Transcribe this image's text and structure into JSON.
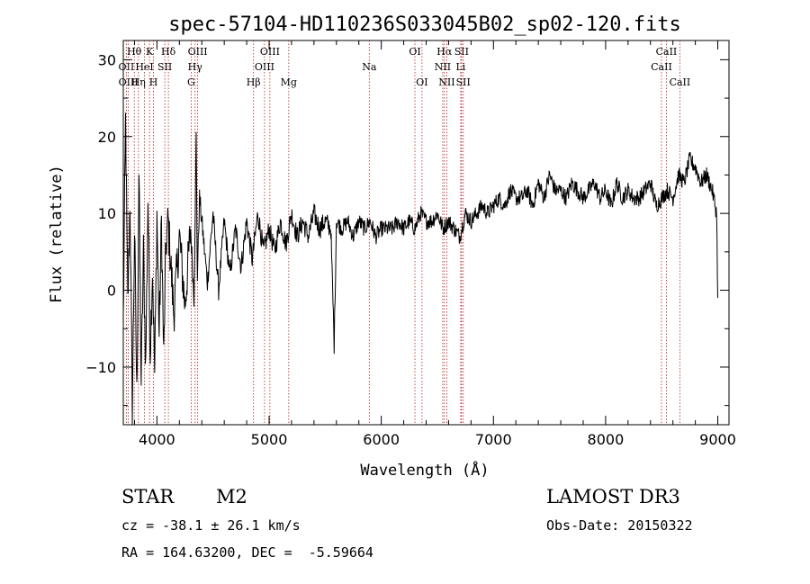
{
  "chart_data": {
    "type": "line",
    "title": "spec-57104-HD110236S033045B02_sp02-120.fits",
    "xlabel": "Wavelength (Å)",
    "ylabel": "Flux (relative)",
    "xlim": [
      3700,
      9100
    ],
    "ylim": [
      -17.5,
      32.5
    ],
    "xticks": [
      4000,
      5000,
      6000,
      7000,
      8000,
      9000
    ],
    "yticks": [
      -10,
      0,
      10,
      20,
      30
    ],
    "line_color": "#000000",
    "marker_color": "#b22222",
    "series": [
      {
        "name": "flux",
        "x": [
          3700,
          3720,
          3740,
          3760,
          3780,
          3800,
          3820,
          3840,
          3860,
          3880,
          3900,
          3920,
          3940,
          3960,
          3980,
          4000,
          4020,
          4040,
          4060,
          4080,
          4100,
          4150,
          4200,
          4250,
          4300,
          4330,
          4350,
          4360,
          4380,
          4400,
          4450,
          4500,
          4550,
          4600,
          4650,
          4700,
          4750,
          4800,
          4850,
          4900,
          4950,
          5000,
          5050,
          5100,
          5150,
          5200,
          5250,
          5300,
          5350,
          5400,
          5450,
          5500,
          5550,
          5580,
          5600,
          5650,
          5700,
          5750,
          5800,
          5850,
          5900,
          5950,
          6000,
          6050,
          6100,
          6150,
          6200,
          6250,
          6300,
          6350,
          6400,
          6450,
          6500,
          6550,
          6600,
          6650,
          6700,
          6750,
          6800,
          6850,
          6900,
          6950,
          7000,
          7050,
          7100,
          7150,
          7200,
          7250,
          7300,
          7350,
          7400,
          7450,
          7500,
          7550,
          7600,
          7650,
          7700,
          7750,
          7800,
          7850,
          7900,
          7950,
          8000,
          8050,
          8100,
          8150,
          8200,
          8250,
          8300,
          8350,
          8400,
          8450,
          8500,
          8550,
          8600,
          8650,
          8700,
          8750,
          8800,
          8850,
          8900,
          8950,
          8990,
          9000
        ],
        "y": [
          -4,
          22,
          -2,
          12,
          -16,
          8,
          -14,
          15,
          -12,
          5,
          -10,
          12,
          -8,
          3,
          -11,
          10,
          -6,
          9,
          -9,
          6,
          9,
          -3,
          7,
          -2,
          8,
          -1,
          20,
          2,
          12,
          9,
          1,
          10,
          0,
          9,
          2,
          8,
          3,
          9,
          4,
          10,
          5,
          8,
          5,
          9,
          6,
          10,
          7,
          9,
          7,
          10,
          8,
          9,
          8,
          -7,
          9,
          8,
          9,
          7,
          9,
          8,
          9,
          7,
          8,
          8,
          8,
          9,
          8,
          9,
          8,
          10,
          9,
          9,
          10,
          8,
          9,
          8,
          7,
          10,
          9,
          10,
          11,
          10,
          11,
          12,
          11,
          13,
          12,
          12,
          13,
          11,
          14,
          12,
          15,
          13,
          13,
          12,
          14,
          13,
          12,
          13,
          14,
          12,
          13,
          11,
          14,
          12,
          13,
          12,
          12,
          13,
          14,
          11,
          12,
          13,
          12,
          15,
          14,
          17,
          16,
          14,
          15,
          13,
          10,
          -1
        ]
      }
    ],
    "line_markers": [
      {
        "label": "Hθ",
        "wavelength": 3798,
        "row": 1
      },
      {
        "label": "OII",
        "wavelength": 3727,
        "row": 2
      },
      {
        "label": "OIII",
        "wavelength": 3745,
        "row": 3
      },
      {
        "label": "K",
        "wavelength": 3934,
        "row": 1
      },
      {
        "label": "HeI",
        "wavelength": 3889,
        "row": 2
      },
      {
        "label": "Hη",
        "wavelength": 3835,
        "row": 3
      },
      {
        "label": "H",
        "wavelength": 3969,
        "row": 3
      },
      {
        "label": "Hδ",
        "wavelength": 4102,
        "row": 1
      },
      {
        "label": "SII",
        "wavelength": 4070,
        "row": 2
      },
      {
        "label": "OIII",
        "wavelength": 4363,
        "row": 1
      },
      {
        "label": "Hγ",
        "wavelength": 4340,
        "row": 2
      },
      {
        "label": "G",
        "wavelength": 4305,
        "row": 3
      },
      {
        "label": "OIII",
        "wavelength": 5007,
        "row": 1
      },
      {
        "label": "OIII",
        "wavelength": 4959,
        "row": 2
      },
      {
        "label": "Hβ",
        "wavelength": 4861,
        "row": 3
      },
      {
        "label": "Mg",
        "wavelength": 5175,
        "row": 3
      },
      {
        "label": "Na",
        "wavelength": 5893,
        "row": 2
      },
      {
        "label": "OI",
        "wavelength": 6300,
        "row": 1
      },
      {
        "label": "OI",
        "wavelength": 6363,
        "row": 3
      },
      {
        "label": "Hα",
        "wavelength": 6563,
        "row": 1
      },
      {
        "label": "SII",
        "wavelength": 6716,
        "row": 1
      },
      {
        "label": "NII",
        "wavelength": 6548,
        "row": 2
      },
      {
        "label": "Li",
        "wavelength": 6708,
        "row": 2
      },
      {
        "label": "NII",
        "wavelength": 6584,
        "row": 3
      },
      {
        "label": "SII",
        "wavelength": 6731,
        "row": 3
      },
      {
        "label": "CaII",
        "wavelength": 8542,
        "row": 1
      },
      {
        "label": "CaII",
        "wavelength": 8498,
        "row": 2
      },
      {
        "label": "CaII",
        "wavelength": 8662,
        "row": 3
      }
    ]
  },
  "info": {
    "object_type": "STAR",
    "subclass": "M2",
    "survey": "LAMOST DR3",
    "redshift": "cz = -38.1 ± 26.1 km/s",
    "obs_date": "Obs-Date: 20150322",
    "coords": "RA = 164.63200, DEC =  -5.59664"
  }
}
